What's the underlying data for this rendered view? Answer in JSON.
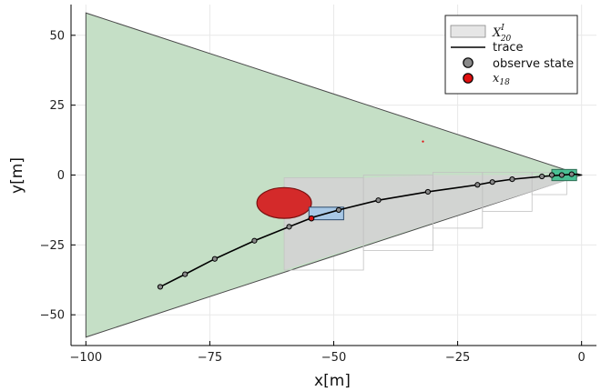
{
  "chart_data": {
    "type": "scatter",
    "xlabel": "x[m]",
    "ylabel": "y[m]",
    "xlim": [
      -103,
      3
    ],
    "ylim": [
      -61,
      61
    ],
    "xticks": [
      -100,
      -75,
      -50,
      -25,
      0
    ],
    "yticks": [
      -50,
      -25,
      0,
      25,
      50
    ],
    "xtick_labels": [
      "−100",
      "−75",
      "−50",
      "−25",
      "0"
    ],
    "ytick_labels": [
      "−50",
      "−25",
      "0",
      "25",
      "50"
    ],
    "grid": true,
    "legend_position": "top-right",
    "legend": {
      "set_label": "X",
      "set_sup": "I",
      "set_sub": "20",
      "trace": "trace",
      "observe": "observe state",
      "current_label": "x",
      "current_sub": "18"
    },
    "colors": {
      "cone": "#c5dfc6",
      "cone_edge": "#4a4a4a",
      "gray_set": "#d3d3d3",
      "ellipse": "#d42a2a",
      "blue_box": "#a8c8e6",
      "green_box": "#4bbf94",
      "trace": "#000000",
      "observe": "#8a8a8a",
      "current": "#e01010"
    },
    "cone": {
      "apex": [
        0,
        0
      ],
      "base_x": -100,
      "base_y": [
        -58,
        58
      ]
    },
    "gray_region": [
      [
        -100,
        -1
      ],
      [
        -44,
        -1
      ],
      [
        -30,
        0
      ],
      [
        -10,
        0
      ],
      [
        -5,
        -1
      ],
      [
        -3,
        -2
      ],
      [
        -60,
        -34
      ],
      [
        -60,
        -1
      ]
    ],
    "gray_blocks": [
      {
        "x": [
          -60,
          -44
        ],
        "y": [
          -34,
          -1
        ]
      },
      {
        "x": [
          -44,
          -30
        ],
        "y": [
          -27,
          0
        ]
      },
      {
        "x": [
          -30,
          -20
        ],
        "y": [
          -19,
          1
        ]
      },
      {
        "x": [
          -20,
          -10
        ],
        "y": [
          -13,
          1
        ]
      },
      {
        "x": [
          -10,
          -3
        ],
        "y": [
          -7,
          1
        ]
      }
    ],
    "ellipse": {
      "cx": -60,
      "cy": -10,
      "rx": 5.5,
      "ry": 5.5
    },
    "blue_box": {
      "x": [
        -55,
        -48
      ],
      "y": [
        -16,
        -11.5
      ]
    },
    "green_box": {
      "x": [
        -6,
        -1
      ],
      "y": [
        -2,
        2
      ]
    },
    "trace": [
      [
        -85,
        -40
      ],
      [
        -80,
        -35.5
      ],
      [
        -74,
        -30
      ],
      [
        -66,
        -23.5
      ],
      [
        -59,
        -18.5
      ],
      [
        -54,
        -15
      ],
      [
        -49,
        -12.5
      ],
      [
        -41,
        -9
      ],
      [
        -31,
        -6
      ],
      [
        -21,
        -3.5
      ],
      [
        -18,
        -2.5
      ],
      [
        -14,
        -1.5
      ],
      [
        -8,
        -0.5
      ],
      [
        -4,
        0
      ],
      [
        -1.5,
        0.3
      ],
      [
        0,
        0
      ]
    ],
    "observe": [
      [
        -85,
        -40
      ],
      [
        -80,
        -35.5
      ],
      [
        -74,
        -30
      ],
      [
        -66,
        -23.5
      ],
      [
        -59,
        -18.5
      ],
      [
        -49,
        -12.5
      ],
      [
        -41,
        -9
      ],
      [
        -31,
        -6
      ],
      [
        -21,
        -3.5
      ],
      [
        -18,
        -2.5
      ],
      [
        -14,
        -1.5
      ],
      [
        -8,
        -0.5
      ],
      [
        -6,
        0
      ],
      [
        -4,
        0
      ],
      [
        -2,
        0.3
      ]
    ],
    "current": [
      -54.5,
      -15.5
    ],
    "small_point": [
      -32,
      12
    ]
  }
}
